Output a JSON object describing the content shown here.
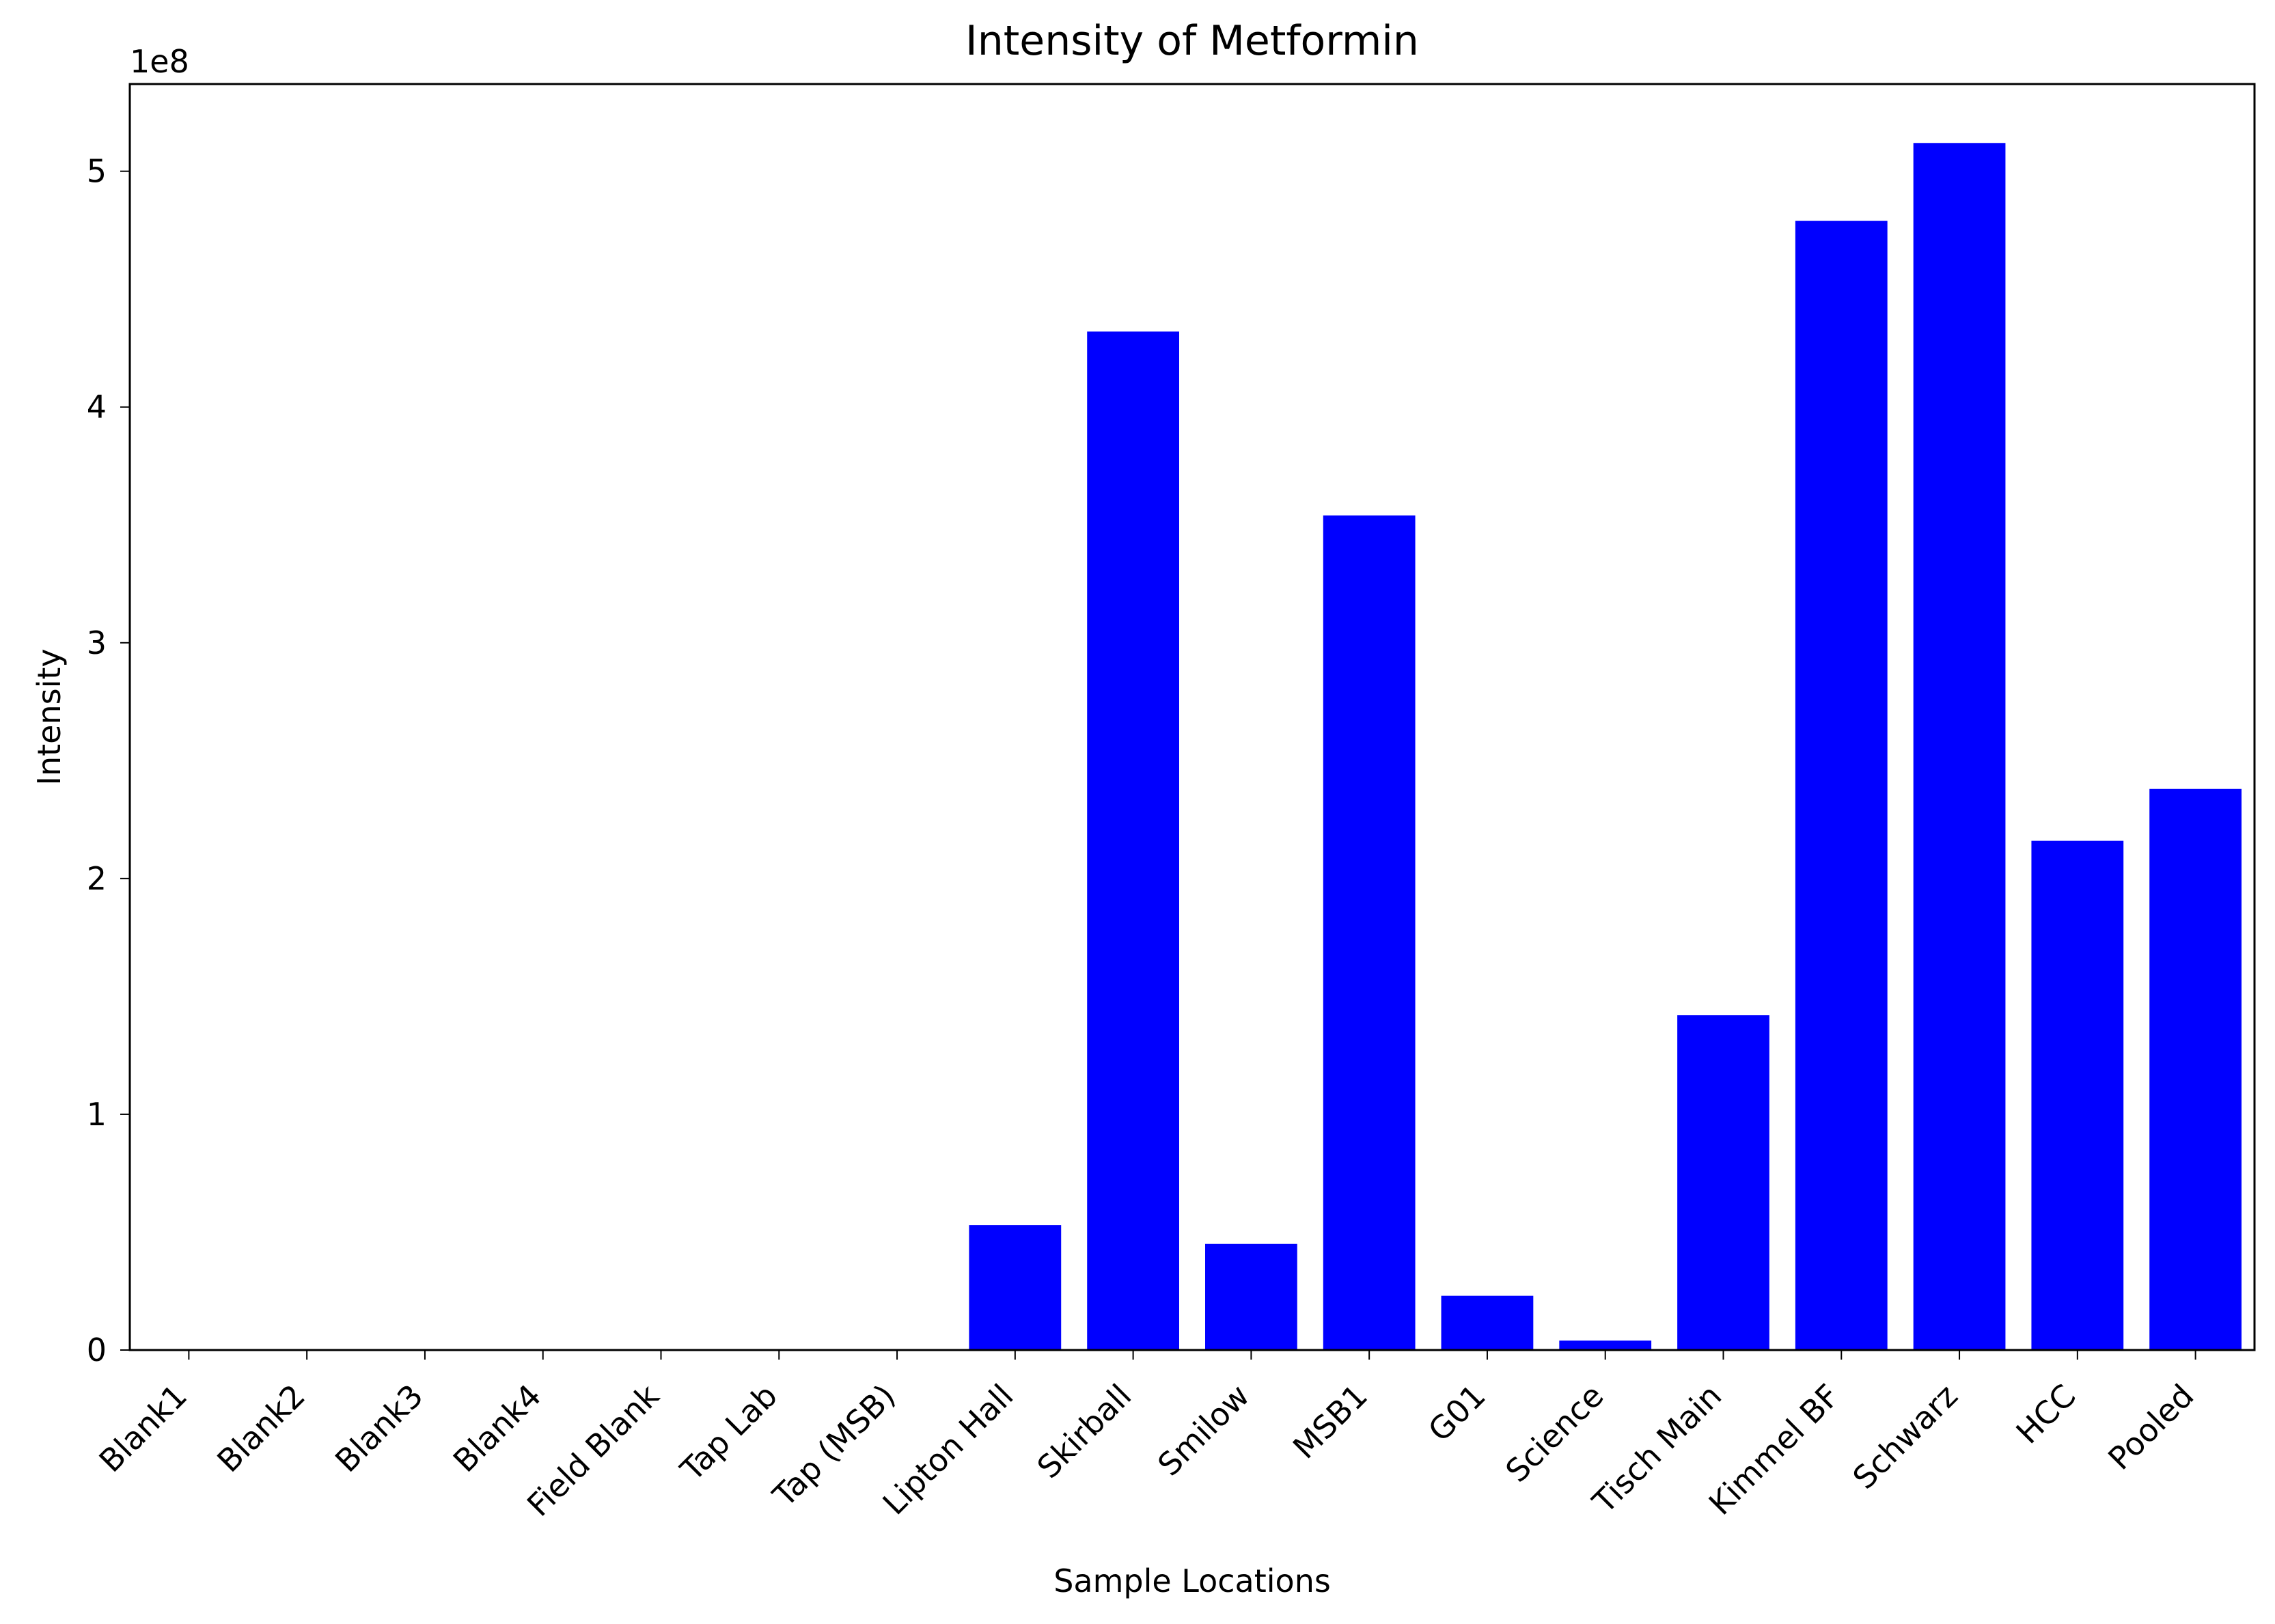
{
  "chart_data": {
    "type": "bar",
    "title": "Intensity of Metformin",
    "xlabel": "Sample Locations",
    "ylabel": "Intensity",
    "y_multiplier_label": "1e8",
    "categories": [
      "Blank1",
      "Blank2",
      "Blank3",
      "Blank4",
      "Field Blank",
      "Tap Lab",
      "Tap (MSB)",
      "Lipton Hall",
      "Skirball",
      "Smilow",
      "MSB1",
      "G01",
      "Science",
      "Tisch Main",
      "Kimmel BF",
      "Schwarz",
      "HCC",
      "Pooled"
    ],
    "values": [
      0,
      0,
      0,
      0,
      0,
      0,
      0,
      53000000,
      432000000,
      45000000,
      354000000,
      23000000,
      4000000,
      142000000,
      479000000,
      512000000,
      216000000,
      238000000
    ],
    "yticks": [
      0,
      1,
      2,
      3,
      4,
      5
    ],
    "ylim": [
      0,
      537000000
    ],
    "grid": false,
    "legend": "none",
    "bar_color": "#0000ff"
  }
}
